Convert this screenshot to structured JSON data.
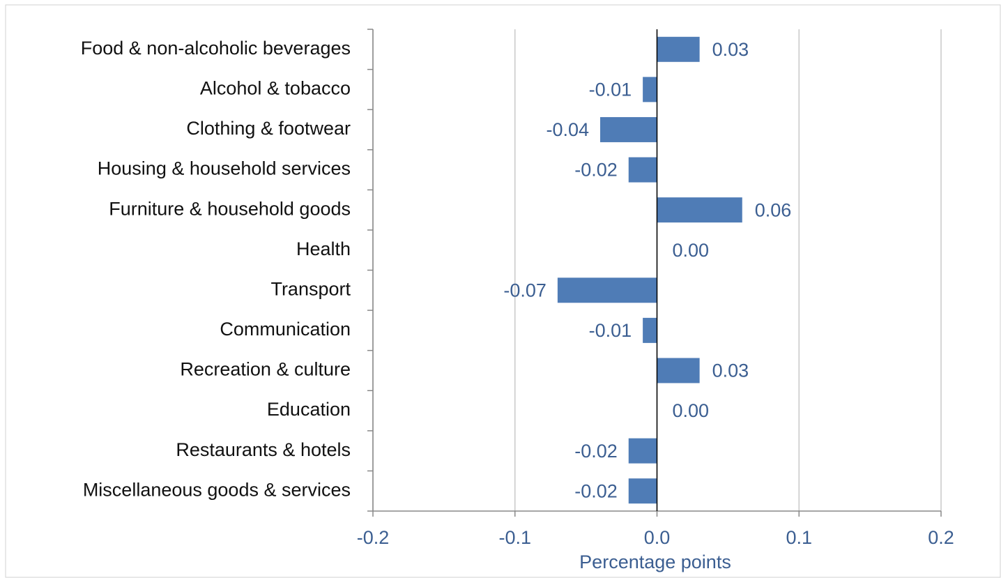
{
  "chart_data": {
    "type": "bar",
    "orientation": "horizontal",
    "categories": [
      "Food & non-alcoholic beverages",
      "Alcohol & tobacco",
      "Clothing & footwear",
      "Housing & household services",
      "Furniture & household goods",
      "Health",
      "Transport",
      "Communication",
      "Recreation & culture",
      "Education",
      "Restaurants & hotels",
      "Miscellaneous goods & services"
    ],
    "values": [
      0.03,
      -0.01,
      -0.04,
      -0.02,
      0.06,
      0,
      -0.07,
      -0.01,
      0.03,
      0,
      -0.02,
      -0.02
    ],
    "value_labels": [
      "0.03",
      "-0.01",
      "-0.04",
      "-0.02",
      "0.06",
      "0.00",
      "-0.07",
      "-0.01",
      "0.03",
      "0.00",
      "-0.02",
      "-0.02"
    ],
    "color": "#4f7cb6",
    "x_label": "Percentage points",
    "xlim": [
      -0.2,
      0.2
    ],
    "xticks": [
      -0.2,
      -0.1,
      {
        "value": 0,
        "label": "0.0"
      },
      0.1,
      0.2
    ],
    "grid": true
  }
}
